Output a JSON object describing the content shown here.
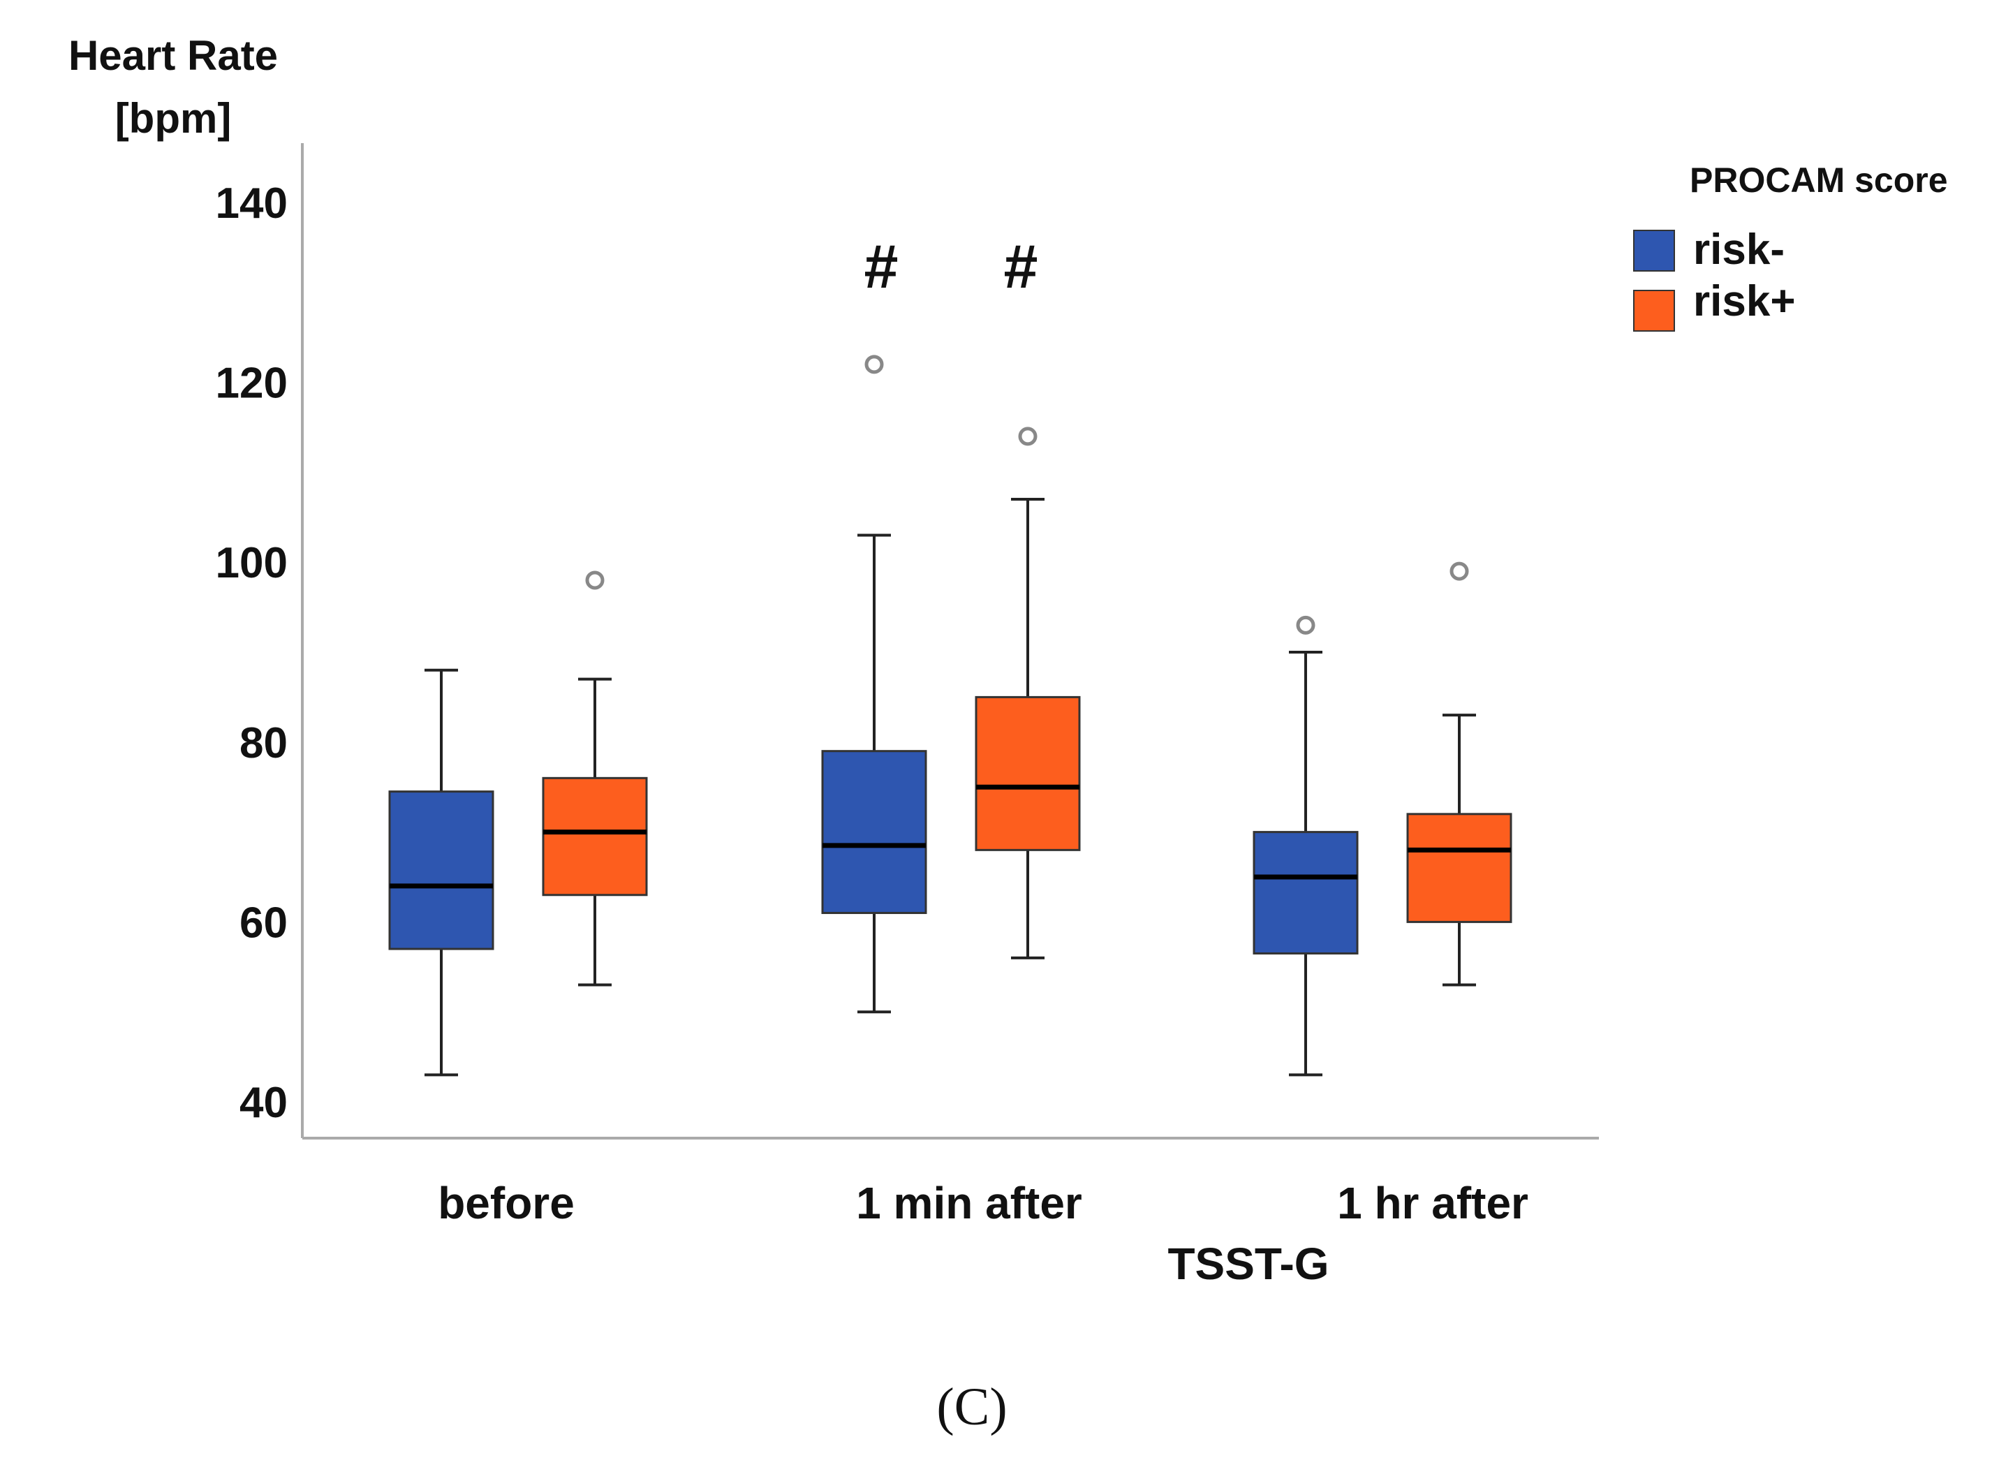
{
  "chart_data": {
    "type": "box",
    "ylabel_line1": "Heart Rate",
    "ylabel_line2": "[bpm]",
    "xlabel": "TSST-G",
    "ylim": [
      40,
      145
    ],
    "yticks": [
      40,
      60,
      80,
      100,
      120,
      140
    ],
    "categories": [
      "before",
      "1 min after",
      "1 hr after"
    ],
    "legend": {
      "title": "PROCAM score",
      "position": "top-right",
      "entries": [
        "risk-",
        "risk+"
      ]
    },
    "annotations": [
      "#",
      "#"
    ],
    "colors": {
      "risk-": "#2e56b0",
      "risk+": "#fd5e1e",
      "outlier": "#888888"
    },
    "series": [
      {
        "name": "risk-",
        "boxes": [
          {
            "category": "before",
            "whisker_low": 43,
            "q1": 57,
            "median": 64,
            "q3": 74.5,
            "whisker_high": 88,
            "outliers": []
          },
          {
            "category": "1 min after",
            "whisker_low": 50,
            "q1": 61,
            "median": 68.5,
            "q3": 79,
            "whisker_high": 103,
            "outliers": [
              122
            ]
          },
          {
            "category": "1 hr after",
            "whisker_low": 43,
            "q1": 56.5,
            "median": 65,
            "q3": 70,
            "whisker_high": 90,
            "outliers": [
              93
            ]
          }
        ]
      },
      {
        "name": "risk+",
        "boxes": [
          {
            "category": "before",
            "whisker_low": 53,
            "q1": 63,
            "median": 70,
            "q3": 76,
            "whisker_high": 87,
            "outliers": [
              98
            ]
          },
          {
            "category": "1 min after",
            "whisker_low": 56,
            "q1": 68,
            "median": 75,
            "q3": 85,
            "whisker_high": 107,
            "outliers": [
              114
            ]
          },
          {
            "category": "1 hr after",
            "whisker_low": 53,
            "q1": 60,
            "median": 68,
            "q3": 72,
            "whisker_high": 83,
            "outliers": [
              99
            ]
          }
        ]
      }
    ],
    "panel_label": "(C)"
  }
}
